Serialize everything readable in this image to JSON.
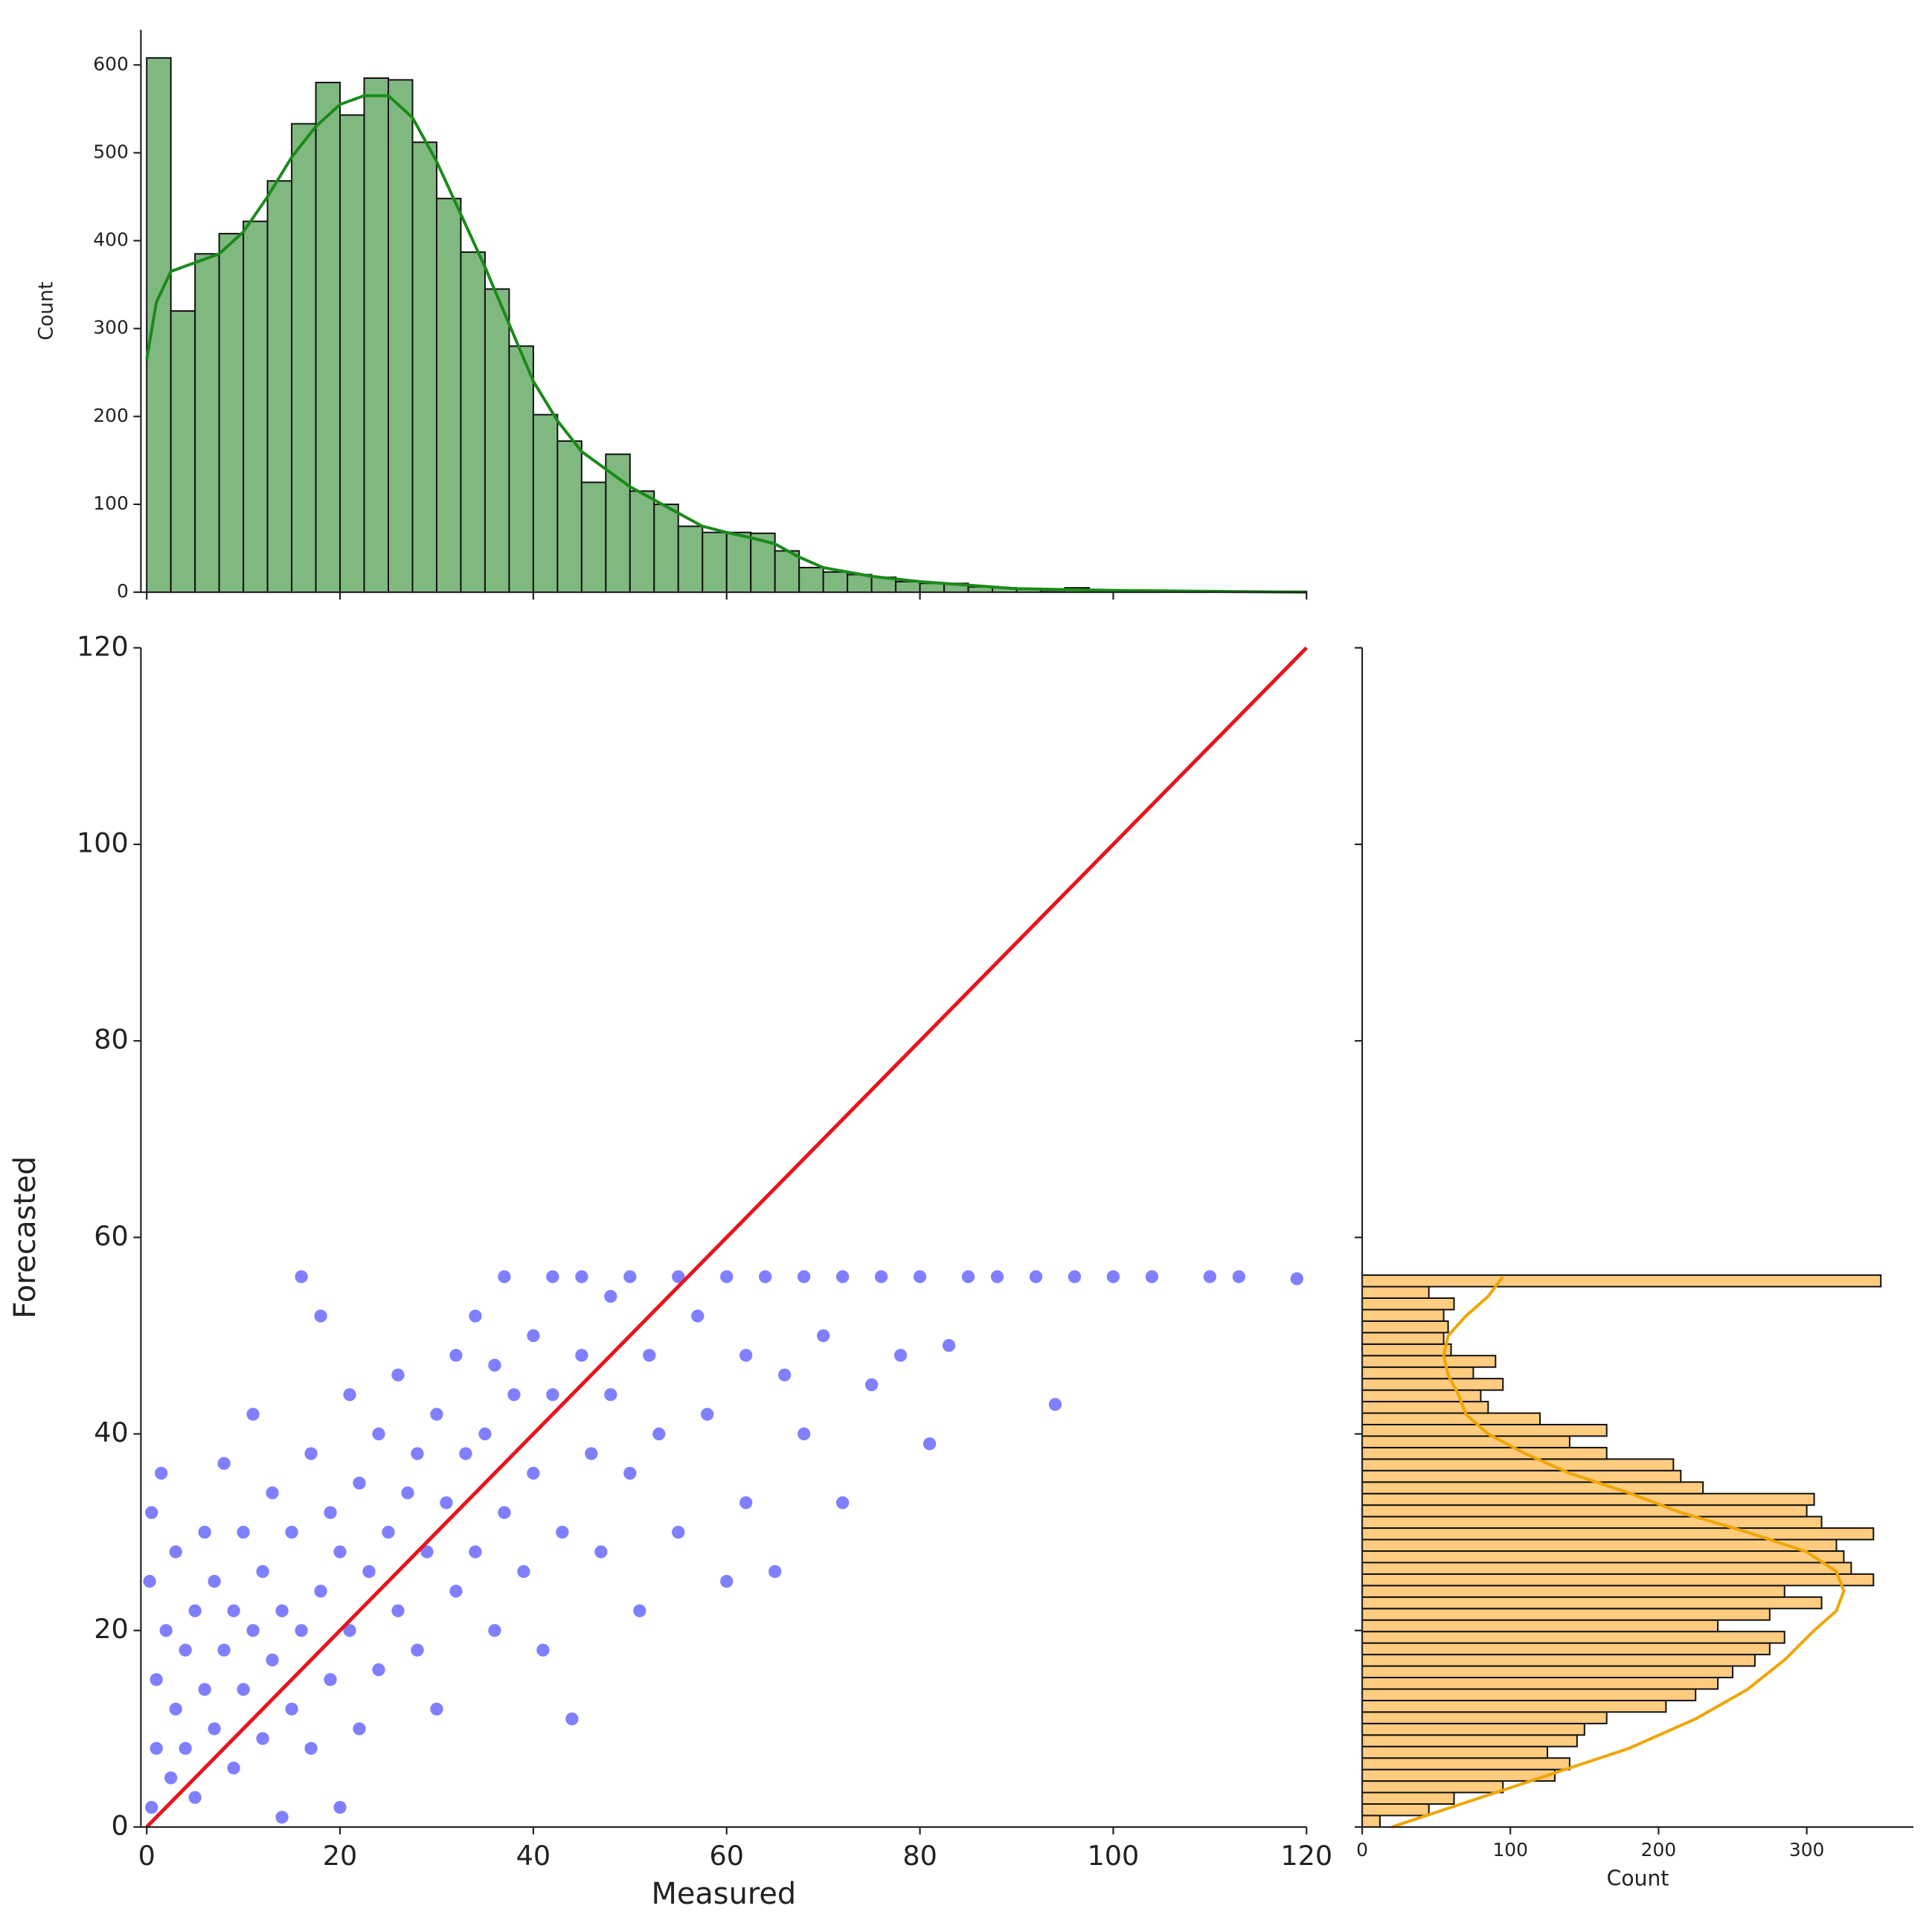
{
  "chart_data": [
    {
      "type": "histogram",
      "orientation": "vertical",
      "ylabel": "Count",
      "bins": [
        0,
        2.5,
        5,
        7.5,
        10,
        12.5,
        15,
        17.5,
        20,
        22.5,
        25,
        27.5,
        30,
        32.5,
        35,
        37.5,
        40,
        42.5,
        45,
        47.5,
        50,
        52.5,
        55,
        57.5,
        60,
        62.5,
        65,
        67.5,
        70,
        72.5,
        75,
        77.5,
        80,
        82.5,
        85,
        87.5,
        90,
        92.5,
        95,
        97.5,
        100,
        102.5,
        105,
        107.5,
        110,
        112.5,
        115,
        117.5,
        120
      ],
      "counts": [
        608,
        320,
        385,
        408,
        422,
        468,
        533,
        580,
        543,
        585,
        583,
        512,
        448,
        387,
        345,
        280,
        202,
        172,
        125,
        157,
        115,
        100,
        75,
        68,
        68,
        67,
        47,
        28,
        23,
        20,
        17,
        12,
        10,
        10,
        6,
        5,
        3,
        2,
        5,
        2,
        1,
        1,
        0,
        1,
        0,
        0,
        0,
        1
      ],
      "color": "#80b980",
      "edgecolor": "#111111",
      "kde": {
        "color": "#1a8a1a",
        "x": [
          0,
          1,
          2.5,
          5,
          7.5,
          10,
          12.5,
          15,
          17.5,
          20,
          22.5,
          25,
          27.5,
          30,
          32.5,
          35,
          37.5,
          40,
          42.5,
          45,
          47.5,
          50,
          52.5,
          55,
          57.5,
          60,
          62.5,
          65,
          67.5,
          70,
          75,
          80,
          85,
          90,
          95,
          100,
          110,
          120
        ],
        "y": [
          265,
          330,
          365,
          375,
          385,
          410,
          450,
          495,
          530,
          555,
          565,
          565,
          540,
          490,
          430,
          370,
          305,
          240,
          195,
          160,
          140,
          120,
          105,
          90,
          75,
          68,
          62,
          55,
          40,
          28,
          18,
          12,
          8,
          4,
          3,
          2,
          1,
          0
        ]
      },
      "xlim": [
        -0.6,
        120
      ],
      "ylim": [
        0,
        640
      ],
      "xticks": [
        0,
        20,
        40,
        60,
        80,
        100,
        120
      ],
      "show_xticklabels": false,
      "yticks": [
        0,
        100,
        200,
        300,
        400,
        500,
        600
      ]
    },
    {
      "type": "scatter",
      "xlabel": "Measured",
      "ylabel": "Forecasted",
      "x": [
        0.5,
        1,
        1,
        0.3,
        0.5,
        1.5,
        2,
        2.5,
        3,
        3,
        4,
        4,
        5,
        5,
        6,
        6,
        7,
        7,
        8,
        8,
        9,
        9,
        10,
        10,
        11,
        11,
        12,
        12,
        13,
        13,
        14,
        14,
        15,
        15,
        16,
        16,
        17,
        17,
        18,
        18,
        19,
        19,
        20,
        20,
        21,
        21,
        22,
        22,
        23,
        24,
        24,
        25,
        26,
        26,
        27,
        28,
        28,
        29,
        30,
        30,
        31,
        32,
        32,
        33,
        34,
        34,
        35,
        36,
        36,
        37,
        37,
        38,
        39,
        40,
        40,
        41,
        42,
        42,
        43,
        44,
        45,
        45,
        46,
        47,
        48,
        48,
        50,
        50,
        51,
        52,
        53,
        55,
        55,
        57,
        58,
        60,
        60,
        62,
        62,
        64,
        65,
        66,
        68,
        68,
        70,
        72,
        72,
        75,
        76,
        78,
        80,
        81,
        83,
        85,
        88,
        92,
        94,
        96,
        100,
        104,
        110,
        113,
        119
      ],
      "y": [
        2,
        8,
        15,
        25,
        32,
        36,
        20,
        5,
        12,
        28,
        18,
        8,
        22,
        3,
        14,
        30,
        10,
        25,
        18,
        37,
        6,
        22,
        14,
        30,
        20,
        42,
        9,
        26,
        17,
        34,
        1,
        22,
        12,
        30,
        56,
        20,
        8,
        38,
        24,
        52,
        15,
        32,
        28,
        2,
        20,
        44,
        35,
        10,
        26,
        40,
        16,
        30,
        22,
        46,
        34,
        18,
        38,
        28,
        42,
        12,
        33,
        24,
        48,
        38,
        28,
        52,
        40,
        20,
        47,
        56,
        32,
        44,
        26,
        50,
        36,
        18,
        56,
        44,
        30,
        11,
        56,
        48,
        38,
        28,
        54,
        44,
        56,
        36,
        22,
        48,
        40,
        56,
        30,
        52,
        42,
        56,
        25,
        48,
        33,
        56,
        26,
        46,
        56,
        40,
        50,
        33,
        56,
        45,
        56,
        48,
        56,
        39,
        49,
        56,
        56,
        56,
        43,
        56,
        56,
        56,
        56,
        56,
        55.8
      ],
      "color": "#0000ff",
      "line": {
        "x": [
          0,
          120
        ],
        "y": [
          0,
          120
        ],
        "color": "#e8141c"
      },
      "xlim": [
        -0.6,
        120
      ],
      "ylim": [
        0,
        120
      ],
      "xticks": [
        0,
        20,
        40,
        60,
        80,
        100,
        120
      ],
      "yticks": [
        0,
        20,
        40,
        60,
        80,
        100,
        120
      ]
    },
    {
      "type": "histogram",
      "orientation": "horizontal",
      "xlabel": "Count",
      "bins": [
        0,
        1.17,
        2.34,
        3.51,
        4.68,
        5.85,
        7.02,
        8.19,
        9.36,
        10.53,
        11.7,
        12.87,
        14.04,
        15.21,
        16.38,
        17.55,
        18.72,
        19.89,
        21.06,
        22.23,
        23.4,
        24.57,
        25.74,
        26.91,
        28.08,
        29.25,
        30.42,
        31.59,
        32.76,
        33.93,
        35.1,
        36.27,
        37.44,
        38.61,
        39.78,
        40.95,
        42.12,
        43.29,
        44.46,
        45.63,
        46.8,
        47.97,
        49.14,
        50.31,
        51.48,
        52.65,
        53.82,
        54.99,
        56.16
      ],
      "counts": [
        12,
        45,
        62,
        95,
        130,
        140,
        125,
        145,
        150,
        165,
        205,
        225,
        240,
        250,
        265,
        275,
        285,
        240,
        275,
        310,
        285,
        345,
        330,
        325,
        320,
        345,
        310,
        300,
        305,
        230,
        215,
        210,
        165,
        140,
        165,
        120,
        85,
        80,
        95,
        75,
        90,
        60,
        55,
        58,
        55,
        62,
        45,
        350
      ],
      "color": "#ffcc80",
      "edgecolor": "#111111",
      "kde": {
        "color": "#f0a500",
        "x": [
          20,
          60,
          100,
          140,
          180,
          225,
          260,
          285,
          305,
          320,
          325,
          320,
          300,
          260,
          215,
          180,
          140,
          110,
          85,
          70,
          65,
          58,
          55,
          58,
          70,
          85,
          95
        ],
        "y": [
          0,
          2,
          4,
          6,
          8,
          11,
          14,
          17,
          20,
          22,
          24,
          26,
          28,
          30,
          32,
          34,
          36,
          38,
          40,
          42,
          44,
          46,
          48,
          50,
          52,
          54,
          56
        ]
      },
      "xlim": [
        0,
        372
      ],
      "ylim": [
        0,
        120
      ],
      "xticks": [
        0,
        100,
        200,
        300
      ],
      "yticks": [
        0,
        20,
        40,
        60,
        80,
        100,
        120
      ],
      "show_yticklabels": false
    }
  ]
}
